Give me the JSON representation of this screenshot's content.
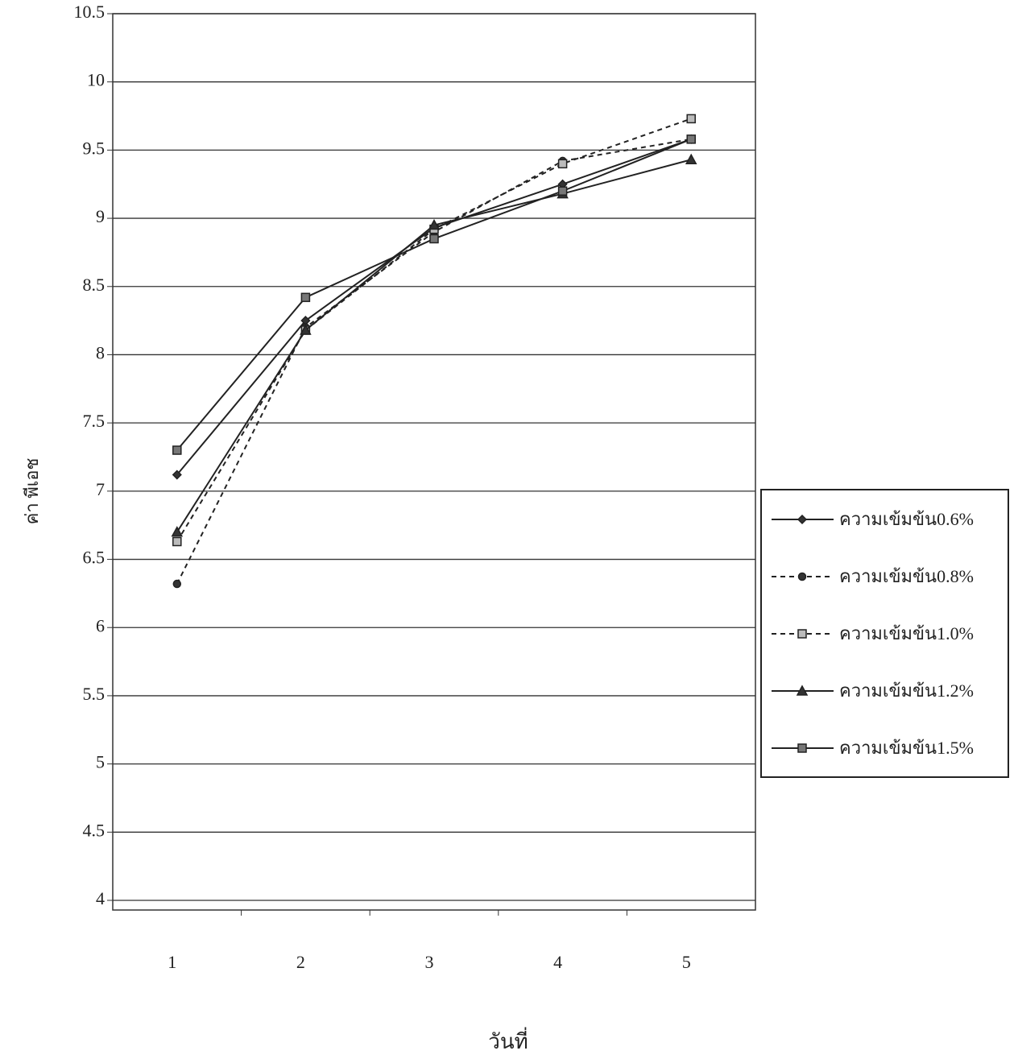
{
  "chart_data": {
    "type": "line",
    "x_label": "วันที่",
    "y_label": "ค่า พีเอช",
    "categories": [
      "1",
      "2",
      "3",
      "4",
      "5"
    ],
    "series": [
      {
        "name": "ความเข้มข้น0.6%",
        "color": "#222222",
        "line_style": "solid",
        "marker": "diamond",
        "values": [
          7.12,
          8.25,
          8.93,
          9.25,
          9.58
        ]
      },
      {
        "name": "ความเข้มข้น0.8%",
        "color": "#222222",
        "line_style": "dashed",
        "marker": "circle",
        "values": [
          6.32,
          8.2,
          8.9,
          9.42,
          9.58
        ]
      },
      {
        "name": "ความเข้มข้น1.0%",
        "color": "#222222",
        "line_style": "dashed",
        "marker": "x-square",
        "values": [
          6.63,
          8.18,
          8.92,
          9.4,
          9.73
        ]
      },
      {
        "name": "ความเข้มข้น1.2%",
        "color": "#222222",
        "line_style": "solid",
        "marker": "triangle",
        "values": [
          6.7,
          8.18,
          8.95,
          9.18,
          9.43
        ]
      },
      {
        "name": "ความเข้มข้น1.5%",
        "color": "#222222",
        "line_style": "solid",
        "marker": "square",
        "values": [
          7.3,
          8.42,
          8.85,
          9.2,
          9.58
        ]
      }
    ],
    "ylim": [
      4,
      10.5
    ],
    "yticks": [
      4,
      4.5,
      5,
      5.5,
      6,
      6.5,
      7,
      7.5,
      8,
      8.5,
      9,
      9.5,
      10,
      10.5
    ],
    "grid": true,
    "legend": "right"
  }
}
